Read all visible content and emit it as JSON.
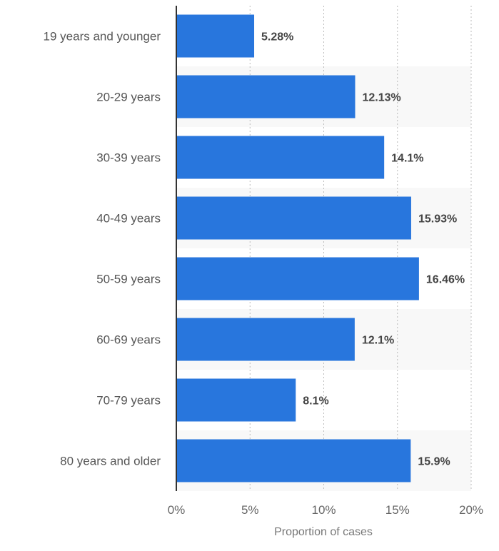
{
  "chart_data": {
    "type": "bar",
    "orientation": "horizontal",
    "categories": [
      "19 years and younger",
      "20-29 years",
      "30-39 years",
      "40-49 years",
      "50-59 years",
      "60-69 years",
      "70-79 years",
      "80 years and older"
    ],
    "values": [
      5.28,
      12.13,
      14.1,
      15.93,
      16.46,
      12.1,
      8.1,
      15.9
    ],
    "value_labels": [
      "5.28%",
      "12.13%",
      "14.1%",
      "15.93%",
      "16.46%",
      "12.1%",
      "8.1%",
      "15.9%"
    ],
    "xlabel": "Proportion of cases",
    "ylabel": "",
    "xlim": [
      0,
      20
    ],
    "x_ticks": [
      0,
      5,
      10,
      15,
      20
    ],
    "x_tick_labels": [
      "0%",
      "5%",
      "10%",
      "15%",
      "20%"
    ],
    "grid": true,
    "legend": "none",
    "colors": {
      "bar": "#2876dd",
      "band": "#f8f8f8",
      "axis": "#333333"
    }
  }
}
